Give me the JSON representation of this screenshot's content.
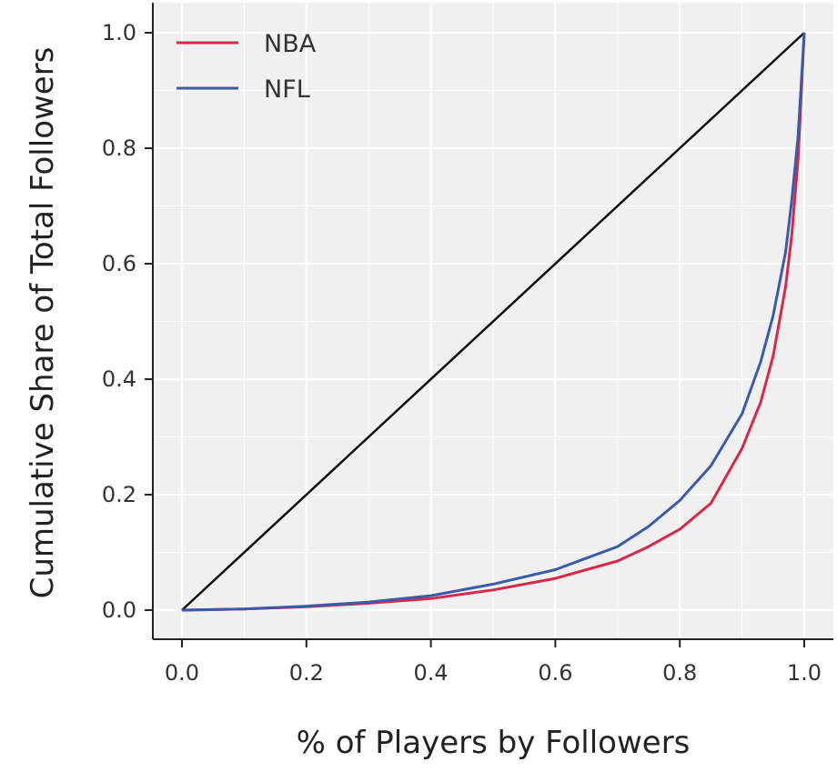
{
  "chart_data": {
    "type": "line",
    "xlabel": "% of Players by Followers",
    "ylabel": "Cumulative Share of Total Followers",
    "xlim": [
      -0.05,
      1.05
    ],
    "ylim": [
      -0.05,
      1.05
    ],
    "xticks": [
      "0.0",
      "0.2",
      "0.4",
      "0.6",
      "0.8",
      "1.0"
    ],
    "yticks": [
      "0.0",
      "0.2",
      "0.4",
      "0.6",
      "0.8",
      "1.0"
    ],
    "grid": true,
    "legend_position": "top-left",
    "series": [
      {
        "name": "NBA",
        "color": "#d6284b",
        "x": [
          0.0,
          0.1,
          0.2,
          0.3,
          0.4,
          0.5,
          0.6,
          0.7,
          0.75,
          0.8,
          0.85,
          0.9,
          0.93,
          0.95,
          0.97,
          0.98,
          0.99,
          1.0
        ],
        "y": [
          0.0,
          0.002,
          0.006,
          0.012,
          0.02,
          0.035,
          0.055,
          0.085,
          0.11,
          0.14,
          0.185,
          0.28,
          0.36,
          0.44,
          0.56,
          0.65,
          0.78,
          1.0
        ]
      },
      {
        "name": "NFL",
        "color": "#3b5ba9",
        "x": [
          0.0,
          0.1,
          0.2,
          0.3,
          0.4,
          0.5,
          0.6,
          0.7,
          0.75,
          0.8,
          0.85,
          0.9,
          0.93,
          0.95,
          0.97,
          0.98,
          0.99,
          1.0
        ],
        "y": [
          0.0,
          0.002,
          0.007,
          0.014,
          0.025,
          0.045,
          0.07,
          0.11,
          0.145,
          0.19,
          0.25,
          0.34,
          0.43,
          0.51,
          0.62,
          0.71,
          0.82,
          1.0
        ]
      },
      {
        "color": "#111111",
        "x": [
          0.0,
          1.0
        ],
        "y": [
          0.0,
          1.0
        ]
      }
    ]
  }
}
